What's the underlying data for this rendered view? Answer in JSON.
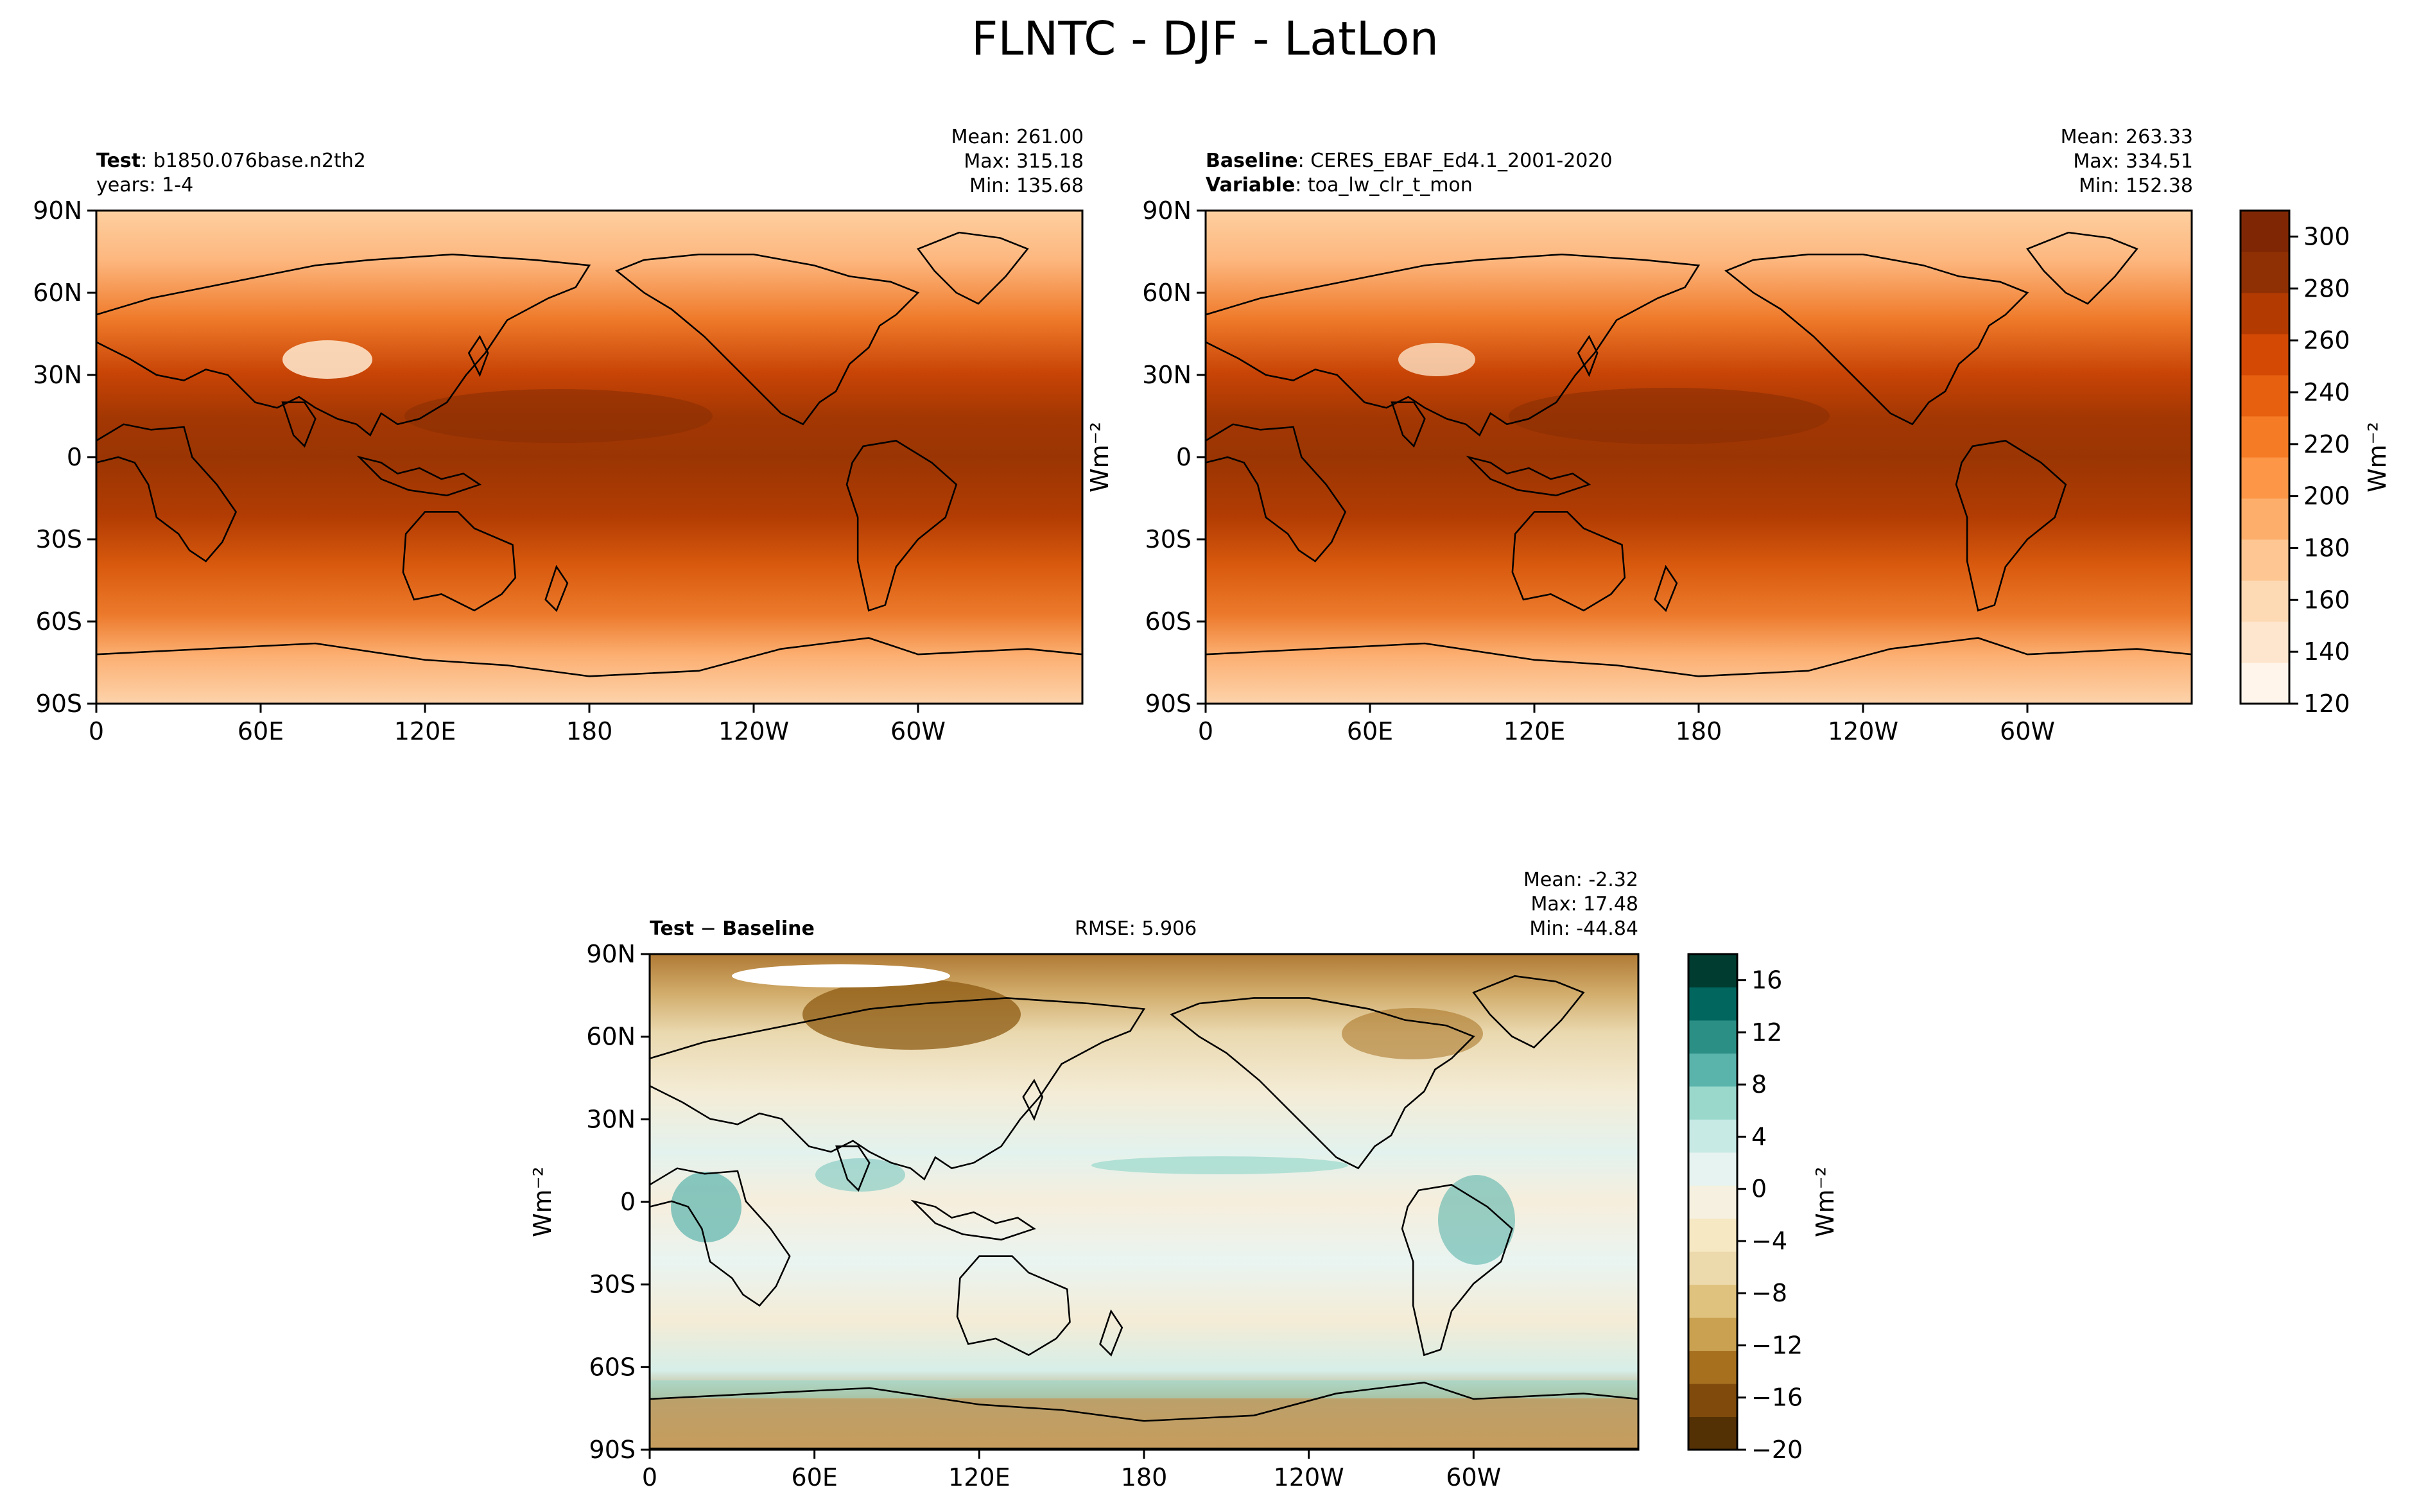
{
  "title": "FLNTC - DJF - LatLon",
  "test_panel": {
    "label_key": "Test",
    "label_value": "b1850.076base.n2th2",
    "years": "years: 1-4",
    "stats": {
      "mean": "Mean: 261.00",
      "max": "Max: 315.18",
      "min": "Min: 135.68"
    },
    "ylabel": ""
  },
  "baseline_panel": {
    "label_key": "Baseline",
    "label_value": "CERES_EBAF_Ed4.1_2001-2020",
    "variable_key": "Variable",
    "variable_value": "toa_lw_clr_t_mon",
    "stats": {
      "mean": "Mean: 263.33",
      "max": "Max: 334.51",
      "min": "Min: 152.38"
    }
  },
  "diff_panel": {
    "label_key": "Test",
    "label_op": " − ",
    "label_key2": "Baseline",
    "rmse": "RMSE: 5.906",
    "stats": {
      "mean": "Mean: -2.32",
      "max": "Max: 17.48",
      "min": "Min: -44.84"
    }
  },
  "colors": {
    "field_scale": [
      "#fff5eb",
      "#fee6ce",
      "#fdd9b4",
      "#fdc692",
      "#fdae6b",
      "#fd9647",
      "#f67b25",
      "#e66010",
      "#d44a04",
      "#b33b02",
      "#8f3004",
      "#7f2704"
    ],
    "diff_scale": [
      "#543005",
      "#7f4a0c",
      "#a6701f",
      "#c9a150",
      "#dfc27d",
      "#ecd9ac",
      "#f6e8c3",
      "#f5f0e0",
      "#e7f3f0",
      "#c7eae5",
      "#9ad8cc",
      "#5ab4ac",
      "#2b8f85",
      "#01665e",
      "#003c30"
    ],
    "land": "#000000"
  },
  "chart_data": [
    {
      "type": "heatmap",
      "name": "test",
      "x_ticks": [
        "0",
        "60E",
        "120E",
        "180",
        "120W",
        "60W"
      ],
      "x_tick_values": [
        0,
        60,
        120,
        180,
        240,
        300
      ],
      "xlim": [
        0,
        360
      ],
      "y_ticks": [
        "90N",
        "60N",
        "30N",
        "0",
        "30S",
        "60S",
        "90S"
      ],
      "y_tick_values": [
        90,
        60,
        30,
        0,
        -30,
        -60,
        -90
      ],
      "ylim": [
        -90,
        90
      ]
    },
    {
      "type": "heatmap",
      "name": "baseline",
      "x_ticks": [
        "0",
        "60E",
        "120E",
        "180",
        "120W",
        "60W"
      ],
      "x_tick_values": [
        0,
        60,
        120,
        180,
        240,
        300
      ],
      "xlim": [
        0,
        360
      ],
      "y_ticks": [
        "90N",
        "60N",
        "30N",
        "0",
        "30S",
        "60S",
        "90S"
      ],
      "y_tick_values": [
        90,
        60,
        30,
        0,
        -30,
        -60,
        -90
      ],
      "ylim": [
        -90,
        90
      ],
      "colorbar": {
        "ticks": [
          "120",
          "140",
          "160",
          "180",
          "200",
          "220",
          "240",
          "260",
          "280",
          "300"
        ],
        "tick_values": [
          120,
          140,
          160,
          180,
          200,
          220,
          240,
          260,
          280,
          300
        ],
        "range": [
          120,
          310
        ],
        "label": "Wm⁻²"
      },
      "ylabel": "Wm⁻²"
    },
    {
      "type": "heatmap",
      "name": "difference",
      "x_ticks": [
        "0",
        "60E",
        "120E",
        "180",
        "120W",
        "60W"
      ],
      "x_tick_values": [
        0,
        60,
        120,
        180,
        240,
        300
      ],
      "xlim": [
        0,
        360
      ],
      "y_ticks": [
        "90N",
        "60N",
        "30N",
        "0",
        "30S",
        "60S",
        "90S"
      ],
      "y_tick_values": [
        90,
        60,
        30,
        0,
        -30,
        -60,
        -90
      ],
      "ylim": [
        -90,
        90
      ],
      "colorbar": {
        "ticks": [
          "−20",
          "−16",
          "−12",
          "−8",
          "−4",
          "0",
          "4",
          "8",
          "12",
          "16"
        ],
        "tick_values": [
          -20,
          -16,
          -12,
          -8,
          -4,
          0,
          4,
          8,
          12,
          16
        ],
        "range": [
          -20,
          18
        ],
        "label": "Wm⁻²"
      },
      "ylabel": "Wm⁻²"
    }
  ]
}
